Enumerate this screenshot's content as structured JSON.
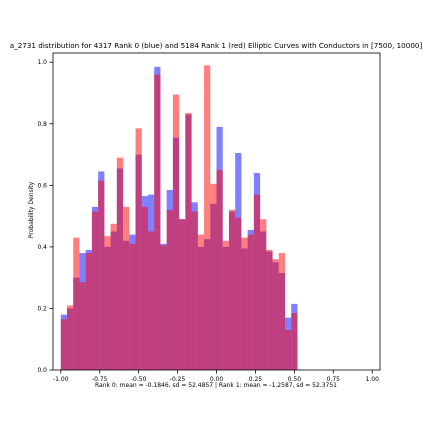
{
  "chart_data": {
    "type": "bar",
    "title": "a_2731 distribution for 4317 Rank 0 (blue) and 5184 Rank 1 (red) Elliptic Curves with Conductors in [7500, 10000]",
    "xlabel": "Rank 0: mean = -0.1846, sd = 52.4857 | Rank 1: mean = -1.2587, sd = 52.3751",
    "ylabel": "Probability Density",
    "xlim": [
      -1.05,
      1.05
    ],
    "ylim": [
      0,
      1.03
    ],
    "x_ticks": [
      "-1.00",
      "-0.75",
      "-0.50",
      "-0.25",
      "0.00",
      "0.25",
      "0.50",
      "0.75",
      "1.00"
    ],
    "x_tick_values": [
      -1.0,
      -0.75,
      -0.5,
      -0.25,
      0.0,
      0.25,
      0.5,
      0.75,
      1.0
    ],
    "y_ticks": [
      "0.0",
      "0.2",
      "0.4",
      "0.6",
      "0.8",
      "1.0"
    ],
    "y_tick_values": [
      0,
      0.2,
      0.4,
      0.6,
      0.8,
      1.0
    ],
    "bin_start": -1.0,
    "bin_width": 0.04,
    "grid": false,
    "series": [
      {
        "name": "Rank 0",
        "color": "#0000ff",
        "alpha": 0.5,
        "values": [
          0.18,
          0.2,
          0.3,
          0.38,
          0.39,
          0.53,
          0.645,
          0.4,
          0.45,
          0.655,
          0.42,
          0.44,
          0.7,
          0.565,
          0.57,
          0.985,
          0.41,
          0.585,
          0.755,
          0.49,
          0.83,
          0.545,
          0.4,
          0.425,
          0.54,
          0.79,
          0.4,
          0.515,
          0.705,
          0.395,
          0.455,
          0.64,
          0.45,
          0.385,
          0.35,
          0.315,
          0.17,
          0.215
        ]
      },
      {
        "name": "Rank 1",
        "color": "#ff0000",
        "alpha": 0.5,
        "values": [
          0.165,
          0.21,
          0.43,
          0.285,
          0.38,
          0.515,
          0.615,
          0.435,
          0.475,
          0.69,
          0.53,
          0.41,
          0.785,
          0.53,
          0.45,
          0.96,
          0.405,
          0.52,
          0.895,
          0.49,
          0.835,
          0.515,
          0.44,
          0.99,
          0.605,
          0.65,
          0.42,
          0.52,
          0.495,
          0.43,
          0.44,
          0.57,
          0.49,
          0.39,
          0.36,
          0.38,
          0.13,
          0.185
        ]
      }
    ]
  }
}
